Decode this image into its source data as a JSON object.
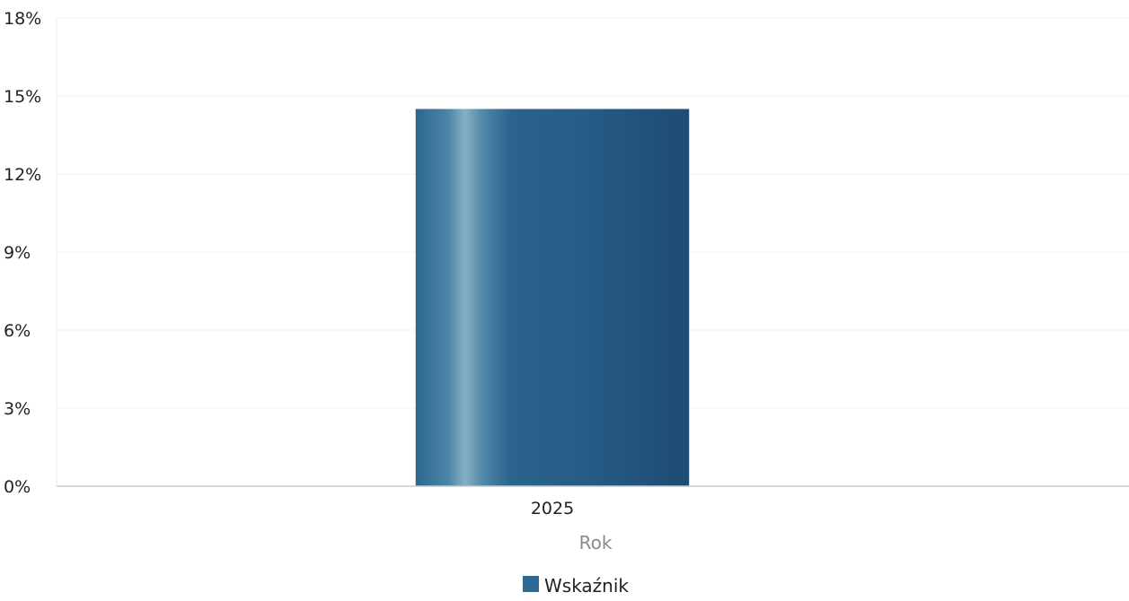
{
  "chart_data": {
    "type": "bar",
    "categories": [
      "2025"
    ],
    "series": [
      {
        "name": "Wskaźnik",
        "values": [
          14.5
        ]
      }
    ],
    "title": "",
    "xlabel": "Rok",
    "ylabel": "",
    "ylim": [
      0,
      18
    ],
    "yticks": [
      0,
      3,
      6,
      9,
      12,
      15,
      18
    ],
    "ytick_suffix": "%",
    "grid": true,
    "legend": "bottom-center",
    "colors": {
      "bar_dark": "#1f4f78",
      "bar_mid": "#2d6a94",
      "bar_light": "#7fa9bd",
      "axis": "#c8c8c8",
      "grid": "#f2f2f2",
      "tick_text": "#222222",
      "axis_label_text": "#8a8a8a"
    }
  }
}
